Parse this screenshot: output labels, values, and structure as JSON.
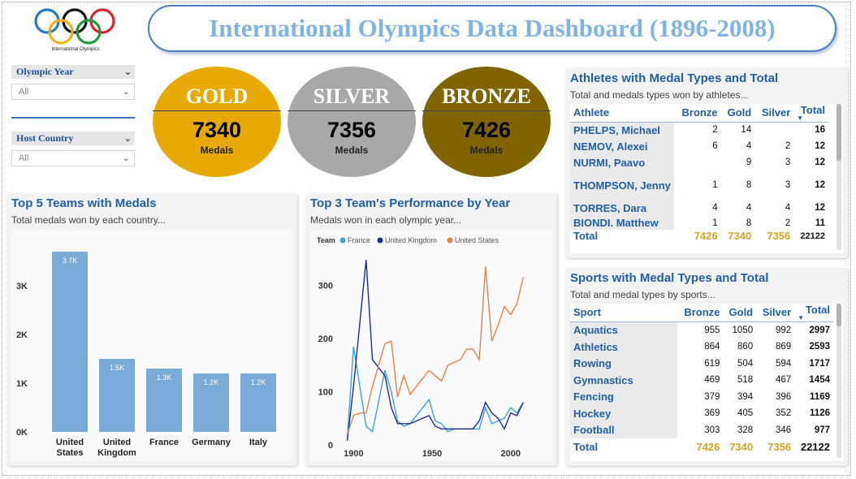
{
  "header": {
    "title": "International Olympics Data Dashboard (1896-2008)",
    "logo_caption": "International Olympics"
  },
  "filters": {
    "year": {
      "label": "Olympic Year",
      "value": "All"
    },
    "host": {
      "label": "Host Country",
      "value": "All"
    }
  },
  "medals": {
    "gold": {
      "label": "GOLD",
      "value": "7340",
      "unit": "Medals",
      "color": "#e8aa00"
    },
    "silver": {
      "label": "SILVER",
      "value": "7356",
      "unit": "Medals",
      "color": "#a8a8a8"
    },
    "bronze": {
      "label": "BRONZE",
      "value": "7426",
      "unit": "Medals",
      "color": "#806400"
    }
  },
  "athletes": {
    "title": "Athletes with Medal Types and Total",
    "subtitle": "Total and medals types won by athletes...",
    "columns": [
      "Athlete",
      "Bronze",
      "Gold",
      "Silver",
      "Total"
    ],
    "rows": [
      {
        "name": "PHELPS, Michael",
        "bronze": "2",
        "gold": "14",
        "silver": "",
        "total": "16"
      },
      {
        "name": "NEMOV, Alexei",
        "bronze": "6",
        "gold": "4",
        "silver": "2",
        "total": "12"
      },
      {
        "name": "NURMI, Paavo",
        "bronze": "",
        "gold": "9",
        "silver": "3",
        "total": "12"
      },
      {
        "name": "THOMPSON, Jenny",
        "bronze": "1",
        "gold": "8",
        "silver": "3",
        "total": "12"
      },
      {
        "name": "TORRES, Dara",
        "bronze": "4",
        "gold": "4",
        "silver": "4",
        "total": "12"
      },
      {
        "name": "BIONDI. Matthew",
        "bronze": "1",
        "gold": "8",
        "silver": "2",
        "total": "11"
      }
    ],
    "total": {
      "name": "Total",
      "bronze": "7426",
      "gold": "7340",
      "silver": "7356",
      "total": "22122"
    }
  },
  "sports": {
    "title": "Sports with Medal Types and Total",
    "subtitle": "Total and medal types by sports...",
    "columns": [
      "Sport",
      "Bronze",
      "Gold",
      "Silver",
      "Total"
    ],
    "rows": [
      {
        "name": "Aquatics",
        "bronze": "955",
        "gold": "1050",
        "silver": "992",
        "total": "2997"
      },
      {
        "name": "Athletics",
        "bronze": "864",
        "gold": "860",
        "silver": "869",
        "total": "2593"
      },
      {
        "name": "Rowing",
        "bronze": "619",
        "gold": "504",
        "silver": "594",
        "total": "1717"
      },
      {
        "name": "Gymnastics",
        "bronze": "469",
        "gold": "518",
        "silver": "467",
        "total": "1454"
      },
      {
        "name": "Fencing",
        "bronze": "379",
        "gold": "394",
        "silver": "396",
        "total": "1169"
      },
      {
        "name": "Hockey",
        "bronze": "369",
        "gold": "405",
        "silver": "352",
        "total": "1126"
      },
      {
        "name": "Football",
        "bronze": "303",
        "gold": "328",
        "silver": "346",
        "total": "977"
      }
    ],
    "total": {
      "name": "Total",
      "bronze": "7426",
      "gold": "7340",
      "silver": "7356",
      "total": "22122"
    }
  },
  "teams_chart": {
    "title": "Top 5 Teams with Medals",
    "subtitle": "Total medals won by each country..."
  },
  "perf_chart": {
    "title": "Top 3 Team's Performance by Year",
    "subtitle": "Medals won in each olympic year...",
    "legend_title": "Team"
  },
  "chart_data": [
    {
      "type": "bar",
      "categories": [
        "United States",
        "United Kingdom",
        "France",
        "Germany",
        "Italy"
      ],
      "values": [
        3700,
        1500,
        1300,
        1200,
        1200
      ],
      "data_labels": [
        "3.7K",
        "1.5K",
        "1.3K",
        "1.2K",
        "1.2K"
      ],
      "yticks": [
        "0K",
        "1K",
        "2K",
        "3K"
      ],
      "ylim": [
        0,
        4000
      ],
      "color": "#7aaad8"
    },
    {
      "type": "line",
      "xlim": [
        1890,
        2012
      ],
      "ylim": [
        0,
        360
      ],
      "xticks": [
        1900,
        1950,
        2000
      ],
      "yticks": [
        0,
        100,
        200,
        300
      ],
      "series": [
        {
          "name": "France",
          "color": "#3aa0ea",
          "x": [
            1896,
            1900,
            1908,
            1912,
            1920,
            1924,
            1928,
            1932,
            1936,
            1948,
            1952,
            1956,
            1960,
            1964,
            1968,
            1972,
            1976,
            1980,
            1984,
            1988,
            1992,
            1996,
            2000,
            2004,
            2008
          ],
          "y": [
            11,
            185,
            35,
            25,
            140,
            100,
            45,
            35,
            40,
            85,
            45,
            40,
            25,
            30,
            30,
            30,
            30,
            30,
            70,
            40,
            45,
            50,
            70,
            60,
            80
          ]
        },
        {
          "name": "United Kingdom",
          "color": "#1a2c9e",
          "x": [
            1896,
            1900,
            1908,
            1912,
            1920,
            1924,
            1928,
            1932,
            1936,
            1948,
            1952,
            1956,
            1960,
            1964,
            1968,
            1972,
            1976,
            1980,
            1984,
            1988,
            1992,
            1996,
            2000,
            2004,
            2008
          ],
          "y": [
            8,
            110,
            348,
            160,
            130,
            70,
            40,
            40,
            40,
            55,
            35,
            30,
            30,
            30,
            30,
            30,
            30,
            45,
            80,
            60,
            50,
            30,
            60,
            55,
            80
          ]
        },
        {
          "name": "United States",
          "color": "#e8804a",
          "x": [
            1896,
            1900,
            1904,
            1908,
            1912,
            1920,
            1924,
            1928,
            1932,
            1936,
            1948,
            1952,
            1956,
            1960,
            1964,
            1968,
            1972,
            1976,
            1980,
            1984,
            1988,
            1992,
            1996,
            2000,
            2004,
            2008
          ],
          "y": [
            20,
            55,
            60,
            60,
            110,
            190,
            195,
            90,
            130,
            95,
            140,
            130,
            120,
            150,
            155,
            160,
            180,
            180,
            160,
            335,
            195,
            225,
            260,
            245,
            265,
            315
          ]
        }
      ]
    }
  ]
}
